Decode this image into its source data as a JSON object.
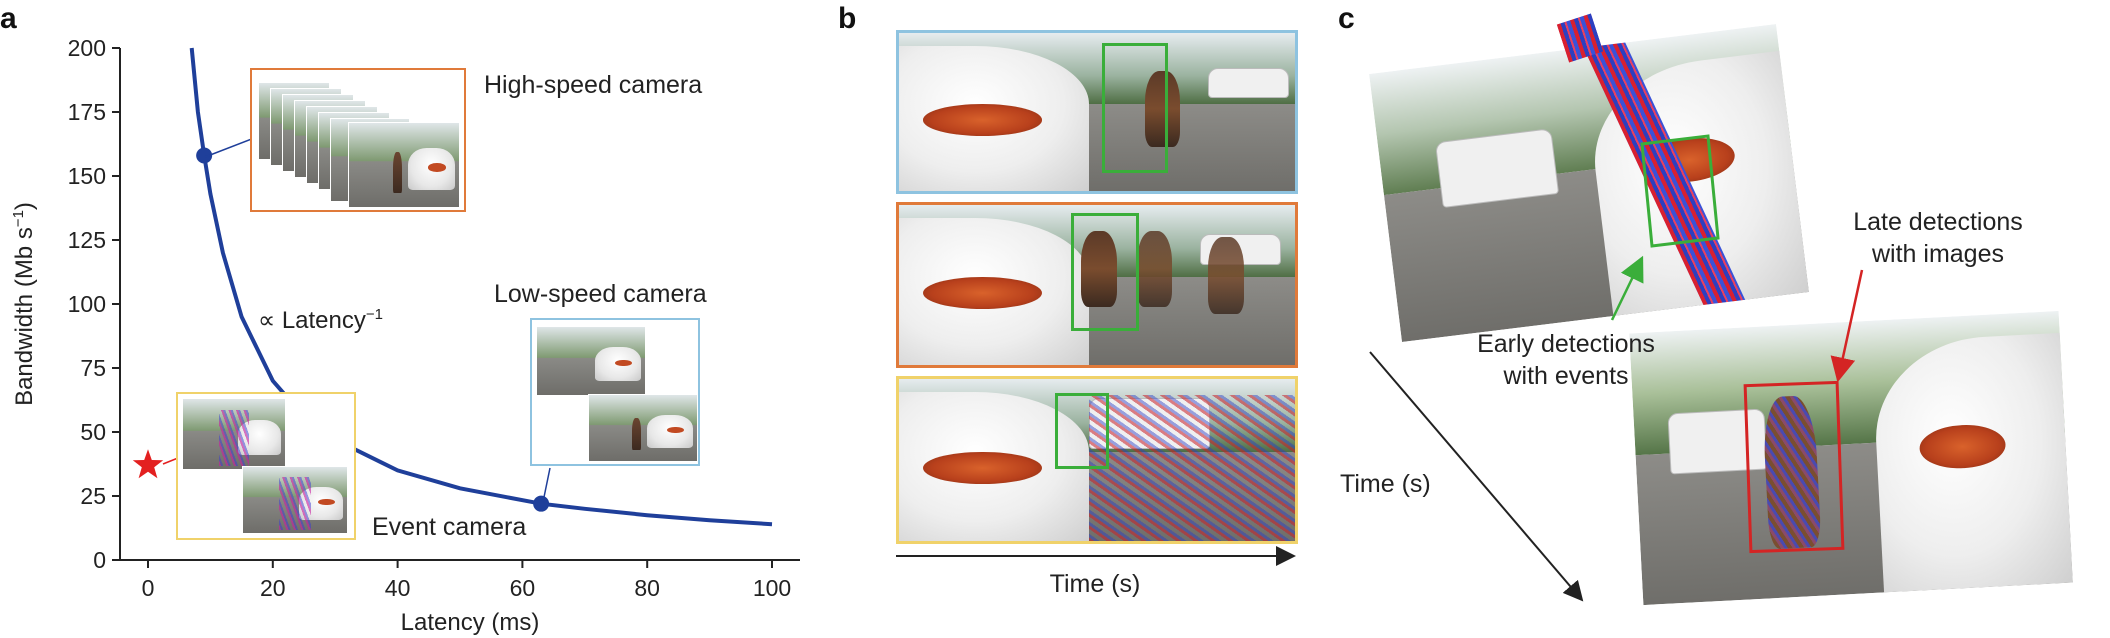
{
  "panels": {
    "a": "a",
    "b": "b",
    "c": "c"
  },
  "chart_data": {
    "type": "line",
    "xlabel": "Latency (ms)",
    "ylabel_main": "Bandwidth (Mb s",
    "ylabel_sup": "−1",
    "ylabel_close": ")",
    "xlim": [
      0,
      100
    ],
    "ylim": [
      0,
      200
    ],
    "xticks": [
      0,
      20,
      40,
      60,
      80,
      100
    ],
    "yticks": [
      0,
      25,
      50,
      75,
      100,
      125,
      150,
      175,
      200
    ],
    "series": [
      {
        "x": [
          7,
          8,
          9,
          10,
          12,
          15,
          20,
          25,
          30,
          40,
          50,
          63,
          70,
          80,
          90,
          100
        ],
        "values": [
          200,
          175,
          158,
          143,
          120,
          95,
          70,
          56,
          47,
          35,
          28,
          22,
          20,
          17.5,
          15.5,
          14
        ]
      }
    ],
    "markers": [
      {
        "label": "High-speed camera",
        "x": 9,
        "y": 158
      },
      {
        "label": "Low-speed camera",
        "x": 63,
        "y": 22
      }
    ],
    "star": {
      "x": 0,
      "y": 37,
      "color": "#e32020"
    },
    "curve_label": "∝ Latency",
    "curve_label_sup": "−1",
    "annotations": {
      "high_speed": "High-speed camera",
      "low_speed": "Low-speed camera",
      "event": "Event camera"
    },
    "colors": {
      "curve": "#1f3f9a",
      "high": "#e07a3a",
      "low": "#8ec3e0",
      "event": "#f0d26a",
      "star": "#e32020"
    }
  },
  "panel_b": {
    "time_label": "Time (s)",
    "frame_colors": [
      "#8ec3e0",
      "#e07a3a",
      "#f0d26a"
    ],
    "bbox_color": "#3aae3a"
  },
  "panel_c": {
    "time_label": "Time (s)",
    "early_label_1": "Early detections",
    "early_label_2": "with events",
    "late_label_1": "Late detections",
    "late_label_2": "with images",
    "early_color": "#3aae3a",
    "late_color": "#d42424"
  }
}
